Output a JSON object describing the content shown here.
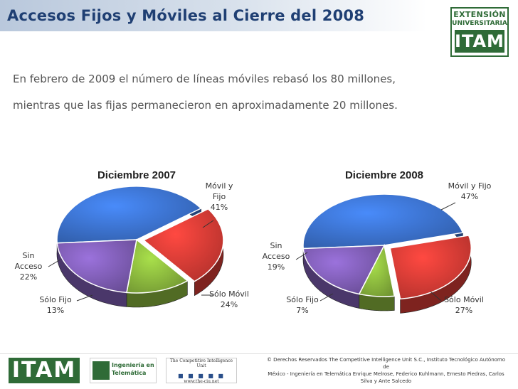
{
  "header": {
    "title": "Accesos Fijos y Móviles al Cierre del 2008",
    "logo_line1": "EXTENSIÓN",
    "logo_line2": "UNIVERSITARIA",
    "logo_line3": "ITAM"
  },
  "intro": {
    "line1": "En febrero de 2009 el número de líneas móviles rebasó los 80 millones,",
    "line2": "mientras que las fijas permanecieron en aproximadamente 20 millones."
  },
  "chart_data": [
    {
      "type": "pie",
      "title": "Diciembre 2007",
      "categories": [
        "Móvil y Fijo",
        "Sólo Móvil",
        "Sólo Fijo",
        "Sin Acceso"
      ],
      "values": [
        41,
        24,
        13,
        22
      ],
      "unit": "%",
      "colors": [
        "#3a6fc8",
        "#d23a34",
        "#87b33c",
        "#7c5bb0"
      ],
      "exploded": "Sólo Móvil"
    },
    {
      "type": "pie",
      "title": "Diciembre 2008",
      "categories": [
        "Móvil y Fijo",
        "Sólo Móvil",
        "Sólo Fijo",
        "Sin Acceso"
      ],
      "values": [
        47,
        27,
        7,
        19
      ],
      "unit": "%",
      "colors": [
        "#3a6fc8",
        "#d23a34",
        "#87b33c",
        "#7c5bb0"
      ],
      "exploded": "Sólo Móvil"
    }
  ],
  "footer": {
    "itam": "ITAM",
    "ing_line1": "Ingeniería en",
    "ing_line2": "Telemática",
    "ciu_line1": "The Competitive Intelligence Unit",
    "ciu_url": "www.the-ciu.net",
    "copyright_line1": "© Derechos Reservados The Competitive Intelligence Unit S.C., Instituto Tecnológico Autónomo de",
    "copyright_line2": "México - Ingeniería en Telemática Enrique Melrose, Federico Kuhlmann, Ernesto Piedras, Carlos",
    "copyright_line3": "Silva y Ante Salcedo"
  }
}
